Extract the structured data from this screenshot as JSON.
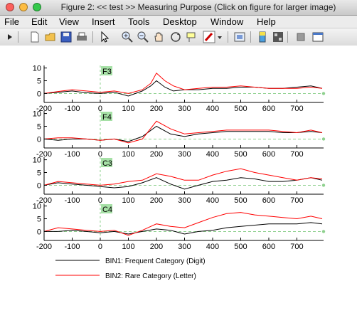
{
  "window": {
    "title": "Figure 2: << test >>  Measuring Purpose (Click on figure for larger image)"
  },
  "menu": [
    "File",
    "Edit",
    "View",
    "Insert",
    "Tools",
    "Desktop",
    "Window",
    "Help"
  ],
  "toolbar_icons": [
    "arrow-icon",
    "new-file-icon",
    "open-folder-icon",
    "save-icon",
    "print-icon",
    "pointer-icon",
    "zoom-in-icon",
    "zoom-out-icon",
    "pan-icon",
    "rotate-icon",
    "data-cursor-icon",
    "brush-icon",
    "brush-dropdown-icon",
    "link-icon",
    "colorbar-icon",
    "legend-icon",
    "hide-tools-icon",
    "dock-icon"
  ],
  "chart_data": {
    "type": "line",
    "xlim": [
      -200,
      795
    ],
    "ylim": [
      -3.5,
      11
    ],
    "xticks": [
      -200,
      -100,
      0,
      100,
      200,
      300,
      400,
      500,
      600,
      700
    ],
    "yticks": [
      0,
      5,
      10
    ],
    "grid": false,
    "colors": {
      "bin1": "#000000",
      "bin2": "#ff0000",
      "baseline": "#8fd18f",
      "label_bg": "#a6e0a6"
    },
    "legend": {
      "position": "bottom-left",
      "entries": [
        "BIN1: Frequent Category (Digit)",
        "BIN2: Rare Category (Letter)"
      ]
    },
    "channels": [
      {
        "label": "F3",
        "series": [
          {
            "name": "BIN1: Frequent Category (Digit)",
            "x": [
              -200,
              -150,
              -100,
              -50,
              0,
              50,
              100,
              150,
              180,
              200,
              230,
              260,
              300,
              350,
              400,
              450,
              500,
              550,
              600,
              650,
              700,
              750,
              790
            ],
            "y": [
              0,
              0.5,
              1,
              0.3,
              0,
              0.5,
              -1,
              1,
              3,
              5,
              2.5,
              1,
              1.5,
              1.5,
              2,
              2,
              2.5,
              2.5,
              2,
              2,
              2.5,
              3,
              2
            ]
          },
          {
            "name": "BIN2: Rare Category (Letter)",
            "x": [
              -200,
              -150,
              -100,
              -50,
              0,
              50,
              100,
              150,
              180,
              200,
              230,
              260,
              300,
              350,
              400,
              450,
              500,
              550,
              600,
              650,
              700,
              750,
              790
            ],
            "y": [
              0,
              0.8,
              1.5,
              1,
              0.5,
              1,
              0,
              1.5,
              4,
              8,
              5,
              3,
              1.5,
              2,
              2.5,
              2.5,
              3,
              2.5,
              2,
              2,
              2,
              2.5,
              2
            ]
          }
        ]
      },
      {
        "label": "F4",
        "series": [
          {
            "name": "BIN1: Frequent Category (Digit)",
            "x": [
              -200,
              -150,
              -100,
              -50,
              0,
              50,
              100,
              150,
              200,
              250,
              300,
              350,
              400,
              450,
              500,
              550,
              600,
              650,
              700,
              750,
              790
            ],
            "y": [
              0,
              -0.5,
              0,
              0,
              -0.5,
              0,
              -1,
              1,
              5,
              2,
              1,
              2,
              2.5,
              3,
              3,
              3,
              3,
              2.5,
              2.5,
              3,
              2.5
            ]
          },
          {
            "name": "BIN2: Rare Category (Letter)",
            "x": [
              -200,
              -150,
              -100,
              -50,
              0,
              50,
              100,
              150,
              200,
              250,
              300,
              350,
              400,
              450,
              500,
              550,
              600,
              650,
              700,
              750,
              790
            ],
            "y": [
              0,
              0.5,
              0.5,
              0,
              -0.5,
              0,
              -1.5,
              0,
              7,
              4,
              2,
              2.5,
              3,
              3.5,
              3.5,
              3.5,
              3.5,
              3,
              2.5,
              3.5,
              2.5
            ]
          }
        ]
      },
      {
        "label": "C3",
        "series": [
          {
            "name": "BIN1: Frequent Category (Digit)",
            "x": [
              -200,
              -150,
              -100,
              -50,
              0,
              50,
              100,
              150,
              200,
              250,
              300,
              350,
              400,
              450,
              500,
              550,
              600,
              650,
              700,
              750,
              790
            ],
            "y": [
              0,
              1,
              0.5,
              0,
              -0.5,
              -1,
              -0.5,
              1,
              3,
              0.5,
              -1.5,
              0,
              1.5,
              2,
              3,
              2.5,
              1.5,
              1.5,
              2,
              3,
              2
            ]
          },
          {
            "name": "BIN2: Rare Category (Letter)",
            "x": [
              -200,
              -150,
              -100,
              -50,
              0,
              50,
              100,
              150,
              200,
              250,
              300,
              350,
              400,
              450,
              500,
              550,
              600,
              650,
              700,
              750,
              790
            ],
            "y": [
              0,
              1.5,
              1,
              0.5,
              0,
              0.5,
              1.5,
              2,
              4.5,
              3.5,
              2,
              2,
              4,
              5.5,
              6.5,
              5,
              4,
              3,
              2,
              3,
              2.5
            ]
          }
        ]
      },
      {
        "label": "C4",
        "series": [
          {
            "name": "BIN1: Frequent Category (Digit)",
            "x": [
              -200,
              -150,
              -100,
              -50,
              0,
              50,
              100,
              150,
              200,
              250,
              300,
              350,
              400,
              450,
              500,
              550,
              600,
              650,
              700,
              750,
              790
            ],
            "y": [
              0,
              0,
              0.5,
              0,
              -0.5,
              0,
              -1,
              0,
              1,
              0.5,
              -1,
              0,
              0.5,
              1.5,
              2,
              2.5,
              3,
              3,
              3,
              3.5,
              3
            ]
          },
          {
            "name": "BIN2: Rare Category (Letter)",
            "x": [
              -200,
              -150,
              -100,
              -50,
              0,
              50,
              100,
              150,
              200,
              250,
              300,
              350,
              400,
              450,
              500,
              550,
              600,
              650,
              700,
              750,
              790
            ],
            "y": [
              0,
              1.5,
              1,
              0.5,
              0,
              0.5,
              -1.5,
              0.5,
              3,
              2,
              1.5,
              3.5,
              5.5,
              7,
              7.5,
              6.5,
              6,
              5.5,
              5,
              6,
              5
            ]
          }
        ]
      }
    ]
  }
}
